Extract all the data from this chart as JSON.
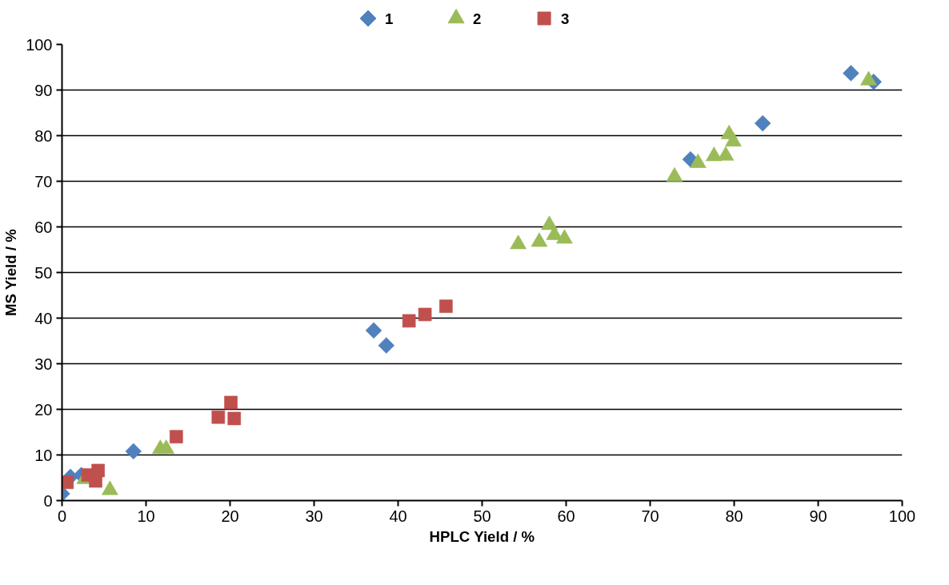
{
  "chart_data": {
    "type": "scatter",
    "xlabel": "HPLC Yield / %",
    "ylabel": "MS Yield / %",
    "xlim": [
      0,
      100
    ],
    "ylim": [
      0,
      100
    ],
    "xticks": [
      0,
      10,
      20,
      30,
      40,
      50,
      60,
      70,
      80,
      90,
      100
    ],
    "yticks": [
      0,
      10,
      20,
      30,
      40,
      50,
      60,
      70,
      80,
      90,
      100
    ],
    "grid": "y",
    "legend": "top",
    "series": [
      {
        "name": "1",
        "color": "#4f81bd",
        "marker": "diamond",
        "x": [
          0,
          1,
          2.3,
          8.5,
          37.1,
          38.6,
          74.8,
          83.4,
          93.9,
          96.6
        ],
        "values": [
          1.5,
          5.2,
          5.6,
          10.8,
          37.3,
          34,
          74.8,
          82.7,
          93.7,
          91.8
        ]
      },
      {
        "name": "2",
        "color": "#9bbb59",
        "marker": "triangle",
        "x": [
          2.7,
          5.7,
          11.7,
          12.4,
          54.3,
          56.8,
          58,
          58.6,
          59.8,
          72.9,
          75.7,
          77.6,
          79,
          79.4,
          79.9,
          96
        ],
        "values": [
          4.7,
          2.3,
          11.3,
          11.3,
          56.2,
          56.7,
          60.4,
          58.2,
          57.4,
          71,
          74,
          75.5,
          75.6,
          80.3,
          78.7,
          92.1
        ]
      },
      {
        "name": "3",
        "color": "#c0504d",
        "marker": "square",
        "x": [
          0.6,
          3.1,
          4,
          4.3,
          13.6,
          18.6,
          20.1,
          20.5,
          41.3,
          43.2,
          45.7
        ],
        "values": [
          4,
          5.6,
          4.3,
          6.6,
          14,
          18.3,
          21.5,
          18,
          39.4,
          40.8,
          42.6
        ]
      }
    ]
  }
}
